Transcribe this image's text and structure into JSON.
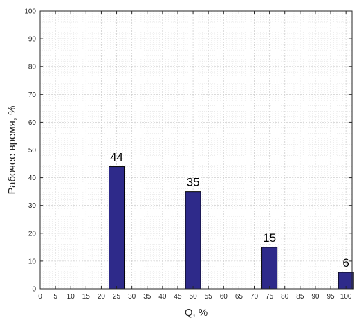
{
  "chart_data": {
    "type": "bar",
    "xlabel": "Q, %",
    "ylabel": "Рабочее время, %",
    "xlim": [
      0,
      102
    ],
    "ylim": [
      0,
      100
    ],
    "x_ticks": [
      0,
      5,
      10,
      15,
      20,
      25,
      30,
      35,
      40,
      45,
      50,
      55,
      60,
      65,
      70,
      75,
      80,
      85,
      90,
      95,
      100
    ],
    "y_ticks": [
      0,
      10,
      20,
      30,
      40,
      50,
      60,
      70,
      80,
      90,
      100
    ],
    "x": [
      25,
      50,
      75,
      100
    ],
    "values": [
      44,
      35,
      15,
      6
    ],
    "data_labels": [
      "44",
      "35",
      "15",
      "6"
    ],
    "grid": true,
    "minor_grid": true,
    "bar_color": "#2e2a8a",
    "bar_edge_color": "#000000"
  }
}
